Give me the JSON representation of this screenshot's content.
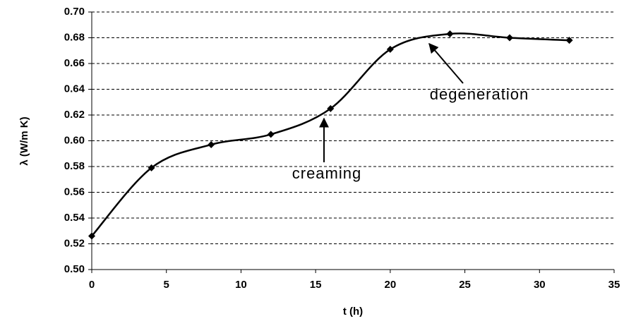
{
  "chart_data": {
    "type": "line",
    "x_label": "t (h)",
    "y_label": "λ (W/m K)",
    "x": [
      0,
      4,
      8,
      12,
      16,
      20,
      24,
      28,
      32
    ],
    "series": [
      {
        "name": "λ",
        "color": "#000000",
        "values": [
          0.526,
          0.579,
          0.597,
          0.605,
          0.625,
          0.671,
          0.683,
          0.68,
          0.678
        ]
      }
    ],
    "xlim": [
      0,
      35
    ],
    "xticks": [
      0,
      5,
      10,
      15,
      20,
      25,
      30,
      35
    ],
    "ylim": [
      0.5,
      0.7
    ],
    "yticks": [
      {
        "value": 0.5,
        "label": "0.50"
      },
      {
        "value": 0.52,
        "label": "0.52"
      },
      {
        "value": 0.54,
        "label": "0.54"
      },
      {
        "value": 0.56,
        "label": "0.56"
      },
      {
        "value": 0.58,
        "label": "0.58"
      },
      {
        "value": 0.6,
        "label": "0.60"
      },
      {
        "value": 0.62,
        "label": "0.62"
      },
      {
        "value": 0.64,
        "label": "0.64"
      },
      {
        "value": 0.66,
        "label": "0.66"
      },
      {
        "value": 0.68,
        "label": "0.68"
      },
      {
        "value": 0.7,
        "label": "0.70"
      }
    ],
    "grid": true,
    "annotations": [
      "creaming",
      "degeneration"
    ]
  }
}
